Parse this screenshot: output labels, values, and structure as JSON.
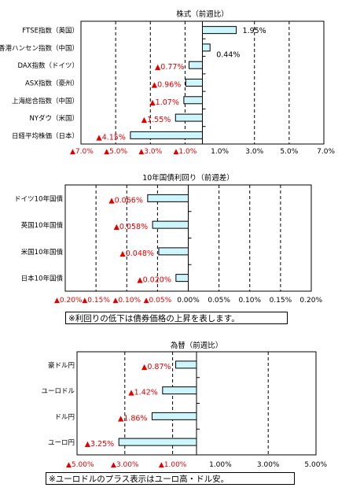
{
  "chart_data": [
    {
      "type": "bar",
      "orientation": "horizontal",
      "title": "株式（前週比）",
      "unit": "%",
      "categories": [
        "FTSE指数（英国）",
        "香港ハンセン指数（中国）",
        "DAX指数（ドイツ）",
        "ASX指数（豪州）",
        "上海総合指数（中国）",
        "NYダウ（米国）",
        "日経平均株価（日本）"
      ],
      "values": [
        1.95,
        0.44,
        -0.77,
        -0.96,
        -1.07,
        -1.55,
        -4.15
      ],
      "value_labels": [
        "1.95%",
        "0.44%",
        "▲0.77%",
        "▲0.96%",
        "▲1.07%",
        "▲1.55%",
        "▲4.15%"
      ],
      "xlim": [
        -7.0,
        7.0
      ],
      "ticks": [
        -7,
        -5,
        -3,
        -1,
        1,
        3,
        5,
        7
      ],
      "tick_labels": [
        "▲7.0%",
        "▲5.0%",
        "▲3.0%",
        "▲1.0%",
        "1.0%",
        "3.0%",
        "5.0%",
        "7.0%"
      ],
      "grid": true
    },
    {
      "type": "bar",
      "orientation": "horizontal",
      "title": "10年国債利回り（前週差）",
      "unit": "%",
      "categories": [
        "ドイツ10年国債",
        "英国10年国債",
        "米国10年国債",
        "日本10年国債"
      ],
      "values": [
        -0.066,
        -0.058,
        -0.048,
        -0.02
      ],
      "value_labels": [
        "▲0.066%",
        "▲0.058%",
        "▲0.048%",
        "▲0.020%"
      ],
      "xlim": [
        -0.2,
        0.2
      ],
      "ticks": [
        -0.2,
        -0.15,
        -0.1,
        -0.05,
        0,
        0.05,
        0.1,
        0.15,
        0.2
      ],
      "tick_labels": [
        "▲0.20%",
        "▲0.15%",
        "▲0.10%",
        "▲0.05%",
        "0.00%",
        "0.05%",
        "0.10%",
        "0.15%",
        "0.20%"
      ],
      "grid": true,
      "note": "※利回りの低下は債券価格の上昇を表します。"
    },
    {
      "type": "bar",
      "orientation": "horizontal",
      "title": "為替（前週比）",
      "unit": "%",
      "categories": [
        "豪ドル円",
        "ユーロドル",
        "ドル円",
        "ユーロ円"
      ],
      "values": [
        -0.87,
        -1.42,
        -1.86,
        -3.25
      ],
      "value_labels": [
        "▲0.87%",
        "▲1.42%",
        "▲1.86%",
        "▲3.25%"
      ],
      "xlim": [
        -5.0,
        5.0
      ],
      "ticks": [
        -5,
        -3,
        -1,
        1,
        3,
        5
      ],
      "tick_labels": [
        "▲5.00%",
        "▲3.00%",
        "▲1.00%",
        "1.00%",
        "3.00%",
        "5.00%"
      ],
      "grid": true,
      "note": "※ユーロドルのプラス表示はユーロ高・ドル安。"
    }
  ],
  "colors": {
    "bar_fill": "#ccf5fc",
    "bar_stroke": "#000000",
    "negative_text": "#e00000",
    "positive_text": "#000000",
    "grid": "#000000"
  }
}
